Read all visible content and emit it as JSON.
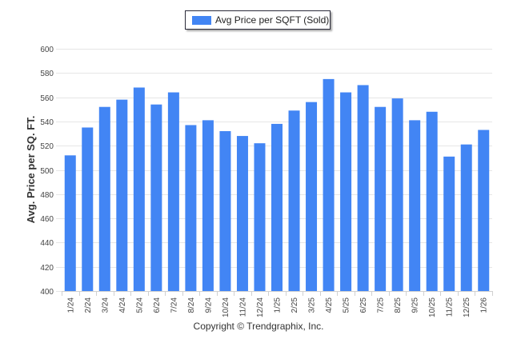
{
  "legend": {
    "label": "Avg Price per SQFT (Sold)"
  },
  "footer": {
    "copyright": "Copyright © Trendgraphix, Inc."
  },
  "colors": {
    "bar": "#4285f4",
    "grid": "#e6e6e6",
    "axis": "#d0d0d0"
  },
  "chart_data": {
    "type": "bar",
    "title": "",
    "xlabel": "",
    "ylabel": "Avg. Price per SQ. FT.",
    "ylim": [
      400,
      600
    ],
    "yticks": [
      400,
      420,
      440,
      460,
      480,
      500,
      520,
      540,
      560,
      580,
      600
    ],
    "grid": true,
    "legend_position": "top-center",
    "categories": [
      "1/24",
      "2/24",
      "3/24",
      "4/24",
      "5/24",
      "6/24",
      "7/24",
      "8/24",
      "9/24",
      "10/24",
      "11/24",
      "12/24",
      "1/25",
      "2/25",
      "3/25",
      "4/25",
      "5/25",
      "6/25",
      "7/25",
      "8/25",
      "9/25",
      "10/25",
      "11/25",
      "12/25",
      "1/26"
    ],
    "series": [
      {
        "name": "Avg Price per SQFT (Sold)",
        "values": [
          512,
          535,
          552,
          558,
          568,
          554,
          564,
          537,
          541,
          532,
          528,
          522,
          538,
          549,
          556,
          575,
          564,
          570,
          552,
          559,
          541,
          548,
          511,
          521,
          533
        ]
      }
    ]
  }
}
